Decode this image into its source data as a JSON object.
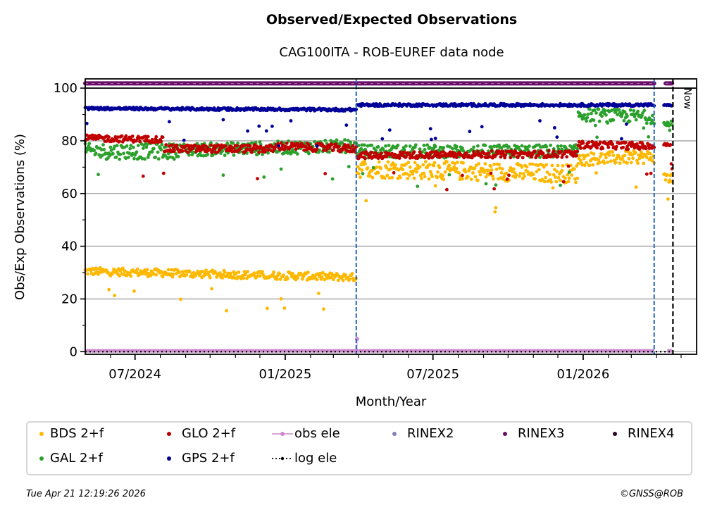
{
  "figure": {
    "title": "Observed/Expected Observations",
    "subtitle": "CAG100ITA - ROB-EUREF data node",
    "timestamp": "Tue Apr 21 12:19:26 2026",
    "copyright": "©GNSS@ROB"
  },
  "chart_data": {
    "type": "scatter",
    "title": "Observed/Expected Observations",
    "subtitle": "CAG100ITA - ROB-EUREF data node",
    "xlabel": "Month/Year",
    "ylabel": "Obs/Exp Observations (%)",
    "xlim": [
      "2024-05-01",
      "2026-05-20"
    ],
    "ylim": [
      -1,
      103.5
    ],
    "x_ticks": [
      {
        "date": "2024-07-01",
        "label": "07/2024"
      },
      {
        "date": "2025-01-01",
        "label": "01/2025"
      },
      {
        "date": "2025-07-01",
        "label": "07/2025"
      },
      {
        "date": "2026-01-01",
        "label": "01/2026"
      }
    ],
    "y_ticks": [
      0,
      20,
      40,
      60,
      80,
      100
    ],
    "grid": "horizontal",
    "legend_position": "bottom",
    "vertical_markers": [
      {
        "date": "2025-03-29",
        "style": "blue-dashed",
        "label": ""
      },
      {
        "date": "2026-03-29",
        "style": "blue-dashed",
        "label": ""
      },
      {
        "date": "2026-04-21",
        "style": "black-dashed",
        "label": "Now"
      }
    ],
    "series": [
      {
        "name": "BDS 2+f",
        "color": "#ffb800",
        "segments": [
          {
            "from": "2024-05-01",
            "to": "2025-03-29",
            "start": 30.5,
            "end": 28.2,
            "spread": 1.5
          },
          {
            "from": "2025-03-30",
            "to": "2025-12-25",
            "start": 69.5,
            "end": 67.5,
            "spread": 3.5
          },
          {
            "from": "2025-12-26",
            "to": "2026-03-29",
            "start": 73,
            "end": 74,
            "spread": 2.5
          },
          {
            "from": "2026-04-10",
            "to": "2026-04-20",
            "start": 66,
            "end": 66,
            "spread": 2
          }
        ]
      },
      {
        "name": "GAL 2+f",
        "color": "#2ca02c",
        "segments": [
          {
            "from": "2024-05-01",
            "to": "2024-08-20",
            "start": 76,
            "end": 76,
            "spread": 3
          },
          {
            "from": "2024-08-21",
            "to": "2025-03-29",
            "start": 76.5,
            "end": 78,
            "spread": 2.5
          },
          {
            "from": "2025-03-30",
            "to": "2025-12-25",
            "start": 76,
            "end": 76,
            "spread": 2.5
          },
          {
            "from": "2025-12-26",
            "to": "2026-03-29",
            "start": 90,
            "end": 89,
            "spread": 2.5
          },
          {
            "from": "2026-04-10",
            "to": "2026-04-20",
            "start": 86,
            "end": 86,
            "spread": 2
          }
        ]
      },
      {
        "name": "GLO 2+f",
        "color": "#c00000",
        "segments": [
          {
            "from": "2024-05-01",
            "to": "2024-08-05",
            "start": 81,
            "end": 80.5,
            "spread": 1.2
          },
          {
            "from": "2024-08-06",
            "to": "2024-12-20",
            "start": 77,
            "end": 77,
            "spread": 1.5
          },
          {
            "from": "2024-12-21",
            "to": "2025-03-29",
            "start": 78,
            "end": 77,
            "spread": 1.5
          },
          {
            "from": "2025-03-30",
            "to": "2025-12-25",
            "start": 74.5,
            "end": 75,
            "spread": 1.3
          },
          {
            "from": "2025-12-26",
            "to": "2026-03-29",
            "start": 78.5,
            "end": 78,
            "spread": 1.4
          },
          {
            "from": "2026-04-10",
            "to": "2026-04-20",
            "start": 78.5,
            "end": 78.5,
            "spread": 0.5
          }
        ]
      },
      {
        "name": "GPS 2+f",
        "color": "#000099",
        "segments": [
          {
            "from": "2024-05-01",
            "to": "2025-03-29",
            "start": 92.3,
            "end": 91.8,
            "spread": 0.5
          },
          {
            "from": "2025-03-30",
            "to": "2026-03-29",
            "start": 93.6,
            "end": 93.6,
            "spread": 0.5
          },
          {
            "from": "2026-04-10",
            "to": "2026-04-20",
            "start": 93.5,
            "end": 93.5,
            "spread": 0.3
          }
        ]
      },
      {
        "name": "RINEX3",
        "color": "#6b0f6b",
        "segments": [
          {
            "from": "2024-05-01",
            "to": "2026-03-29",
            "start": 101.8,
            "end": 101.8,
            "spread": 0
          },
          {
            "from": "2026-04-12",
            "to": "2026-04-20",
            "start": 101.8,
            "end": 101.8,
            "spread": 0
          }
        ]
      },
      {
        "name": "obs ele",
        "color": "#cc88cc",
        "segments": [
          {
            "from": "2024-05-01",
            "to": "2026-03-29",
            "start": 0.3,
            "end": 0.3,
            "spread": 0
          },
          {
            "from": "2026-04-14",
            "to": "2026-04-20",
            "start": 0.3,
            "end": 0.3,
            "spread": 0
          }
        ],
        "spikes": [
          {
            "date": "2025-03-30",
            "value": 4.8
          }
        ]
      },
      {
        "name": "log ele",
        "color": "#000000",
        "segments": [
          {
            "from": "2024-05-01",
            "to": "2026-04-21",
            "start": 0,
            "end": 0,
            "spread": 0
          }
        ]
      }
    ],
    "legend": [
      {
        "label": "BDS 2+f",
        "color": "#ffb800",
        "marker": "dot"
      },
      {
        "label": "GLO 2+f",
        "color": "#c00000",
        "marker": "dot"
      },
      {
        "label": "obs ele",
        "color": "#cc88cc",
        "marker": "line-dot"
      },
      {
        "label": "RINEX2",
        "color": "#8080c0",
        "marker": "dot"
      },
      {
        "label": "RINEX3",
        "color": "#6b0f6b",
        "marker": "dot"
      },
      {
        "label": "RINEX4",
        "color": "#2a0a20",
        "marker": "dot"
      },
      {
        "label": "GAL 2+f",
        "color": "#2ca02c",
        "marker": "dot"
      },
      {
        "label": "GPS 2+f",
        "color": "#000099",
        "marker": "dot"
      },
      {
        "label": "log ele",
        "color": "#000000",
        "marker": "dotted-dot"
      }
    ]
  }
}
